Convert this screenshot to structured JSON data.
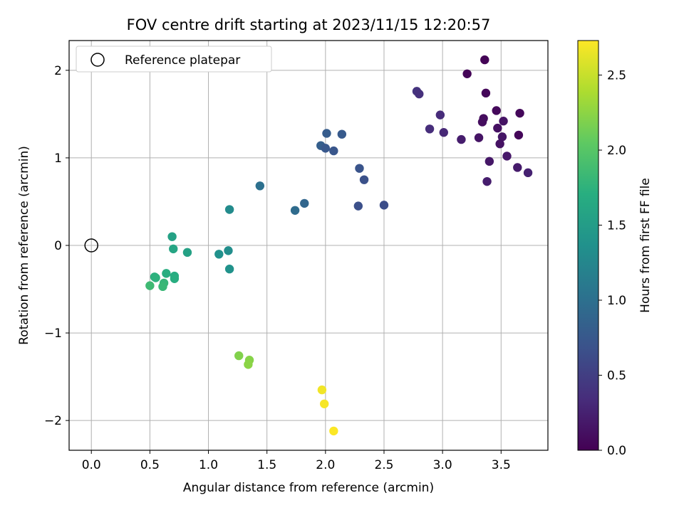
{
  "chart_data": {
    "type": "scatter",
    "title": "FOV centre drift starting at 2023/11/15 12:20:57",
    "xlabel": "Angular distance from reference (arcmin)",
    "ylabel": "Rotation from reference (arcmin)",
    "xlim": [
      -0.19,
      3.9
    ],
    "ylim": [
      -2.34,
      2.34
    ],
    "grid": true,
    "legend_position": "top-left",
    "x_ticks": [
      "0.0",
      "0.5",
      "1.0",
      "1.5",
      "2.0",
      "2.5",
      "3.0",
      "3.5"
    ],
    "y_ticks": [
      "−2",
      "−1",
      "0",
      "1",
      "2"
    ],
    "reference": {
      "name": "Reference platepar",
      "x": 0.0,
      "y": 0.0
    },
    "colorbar": {
      "label": "Hours from first FF file",
      "colormap": "viridis",
      "range": [
        0.0,
        2.73
      ],
      "ticks": [
        "0.0",
        "0.5",
        "1.0",
        "1.5",
        "2.0",
        "2.5"
      ]
    },
    "points": [
      {
        "x": 3.36,
        "y": 2.12,
        "c": 0.02
      },
      {
        "x": 3.21,
        "y": 1.96,
        "c": 0.03
      },
      {
        "x": 3.37,
        "y": 1.74,
        "c": 0.04
      },
      {
        "x": 3.46,
        "y": 1.54,
        "c": 0.06
      },
      {
        "x": 3.66,
        "y": 1.51,
        "c": 0.05
      },
      {
        "x": 3.35,
        "y": 1.45,
        "c": 0.09
      },
      {
        "x": 3.34,
        "y": 1.41,
        "c": 0.1
      },
      {
        "x": 3.52,
        "y": 1.42,
        "c": 0.14
      },
      {
        "x": 3.47,
        "y": 1.34,
        "c": 0.12
      },
      {
        "x": 3.65,
        "y": 1.26,
        "c": 0.04
      },
      {
        "x": 3.51,
        "y": 1.24,
        "c": 0.16
      },
      {
        "x": 3.31,
        "y": 1.23,
        "c": 0.15
      },
      {
        "x": 3.16,
        "y": 1.21,
        "c": 0.22
      },
      {
        "x": 3.49,
        "y": 1.16,
        "c": 0.13
      },
      {
        "x": 3.55,
        "y": 1.02,
        "c": 0.18
      },
      {
        "x": 3.4,
        "y": 0.96,
        "c": 0.17
      },
      {
        "x": 3.64,
        "y": 0.89,
        "c": 0.2
      },
      {
        "x": 3.73,
        "y": 0.83,
        "c": 0.25
      },
      {
        "x": 3.38,
        "y": 0.73,
        "c": 0.22
      },
      {
        "x": 2.78,
        "y": 1.76,
        "c": 0.4
      },
      {
        "x": 2.8,
        "y": 1.73,
        "c": 0.37
      },
      {
        "x": 2.98,
        "y": 1.49,
        "c": 0.33
      },
      {
        "x": 2.89,
        "y": 1.33,
        "c": 0.35
      },
      {
        "x": 3.01,
        "y": 1.29,
        "c": 0.3
      },
      {
        "x": 1.44,
        "y": 0.68,
        "c": 1.0
      },
      {
        "x": 1.96,
        "y": 1.14,
        "c": 0.82
      },
      {
        "x": 2.01,
        "y": 1.28,
        "c": 0.79
      },
      {
        "x": 2.14,
        "y": 1.27,
        "c": 0.77
      },
      {
        "x": 2.0,
        "y": 1.11,
        "c": 0.75
      },
      {
        "x": 2.07,
        "y": 1.08,
        "c": 0.72
      },
      {
        "x": 2.29,
        "y": 0.88,
        "c": 0.7
      },
      {
        "x": 2.33,
        "y": 0.75,
        "c": 0.67
      },
      {
        "x": 2.5,
        "y": 0.46,
        "c": 0.64
      },
      {
        "x": 2.28,
        "y": 0.45,
        "c": 0.66
      },
      {
        "x": 1.82,
        "y": 0.48,
        "c": 0.9
      },
      {
        "x": 1.74,
        "y": 0.4,
        "c": 0.95
      },
      {
        "x": 1.18,
        "y": 0.41,
        "c": 1.3
      },
      {
        "x": 1.09,
        "y": -0.1,
        "c": 1.36
      },
      {
        "x": 1.17,
        "y": -0.06,
        "c": 1.33
      },
      {
        "x": 1.18,
        "y": -0.27,
        "c": 1.38
      },
      {
        "x": 0.69,
        "y": 0.1,
        "c": 1.55
      },
      {
        "x": 0.82,
        "y": -0.08,
        "c": 1.55
      },
      {
        "x": 0.7,
        "y": -0.04,
        "c": 1.6
      },
      {
        "x": 0.64,
        "y": -0.32,
        "c": 1.7
      },
      {
        "x": 0.54,
        "y": -0.36,
        "c": 1.72
      },
      {
        "x": 0.55,
        "y": -0.37,
        "c": 1.74
      },
      {
        "x": 0.71,
        "y": -0.35,
        "c": 1.68
      },
      {
        "x": 0.71,
        "y": -0.38,
        "c": 1.7
      },
      {
        "x": 0.62,
        "y": -0.43,
        "c": 1.8
      },
      {
        "x": 0.61,
        "y": -0.47,
        "c": 1.82
      },
      {
        "x": 0.5,
        "y": -0.46,
        "c": 1.85
      },
      {
        "x": 1.26,
        "y": -1.26,
        "c": 2.2
      },
      {
        "x": 1.35,
        "y": -1.31,
        "c": 2.22
      },
      {
        "x": 1.34,
        "y": -1.36,
        "c": 2.24
      },
      {
        "x": 1.97,
        "y": -1.65,
        "c": 2.68
      },
      {
        "x": 1.99,
        "y": -1.81,
        "c": 2.7
      },
      {
        "x": 2.07,
        "y": -2.12,
        "c": 2.72
      }
    ]
  }
}
